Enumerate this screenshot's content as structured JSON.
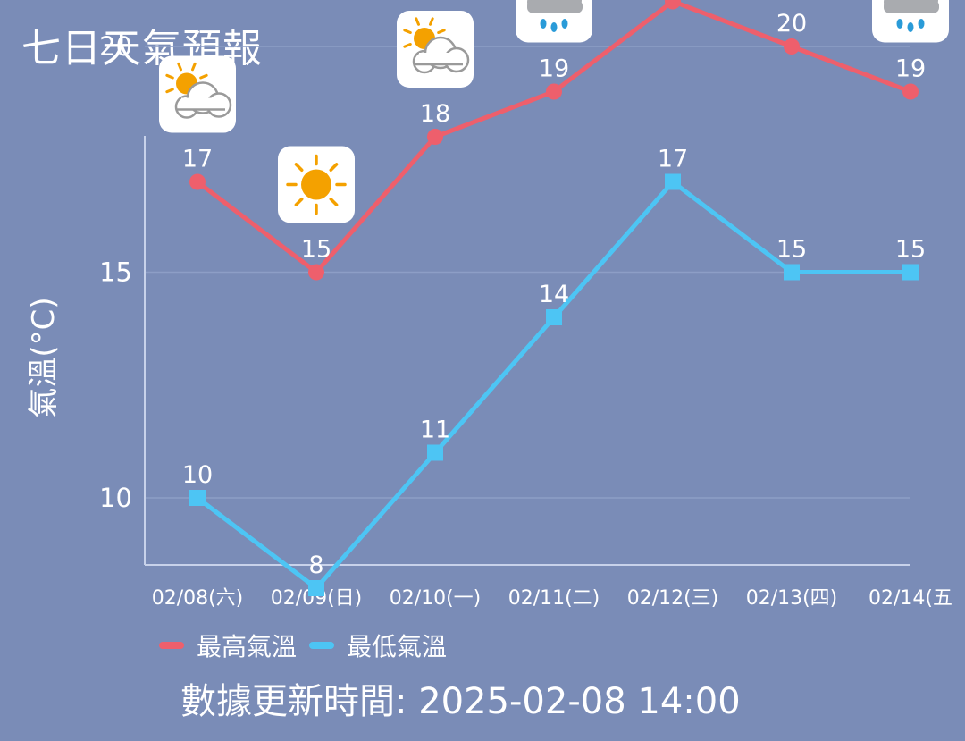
{
  "title": "七日天氣預報",
  "chart_data": {
    "type": "line",
    "categories": [
      "02/08(六)",
      "02/09(日)",
      "02/10(一)",
      "02/11(二)",
      "02/12(三)",
      "02/13(四)",
      "02/14(五"
    ],
    "series": [
      {
        "name": "最高氣溫",
        "values": [
          17,
          15,
          18,
          19,
          21,
          20,
          19
        ],
        "color": "#ee5f6c",
        "marker": "circle"
      },
      {
        "name": "最低氣溫",
        "values": [
          10,
          8,
          11,
          14,
          17,
          15,
          15
        ],
        "color": "#4dc5f4",
        "marker": "square"
      }
    ],
    "ylabel": "氣溫(°C)",
    "xlabel": "",
    "yticks": [
      10,
      15,
      20,
      25
    ],
    "ylim": [
      7,
      26
    ],
    "grid": true,
    "legend_position": "bottom-left",
    "weather_icons": [
      "partly-cloudy-icon",
      "sunny-icon",
      "partly-cloudy-icon",
      "rain-icon",
      "rain-icon",
      "rain-icon",
      "rain-icon"
    ]
  },
  "legend": {
    "high_label": "最高氣溫",
    "low_label": "最低氣溫"
  },
  "update": {
    "text": "數據更新時間: 2025-02-08 14:00"
  }
}
